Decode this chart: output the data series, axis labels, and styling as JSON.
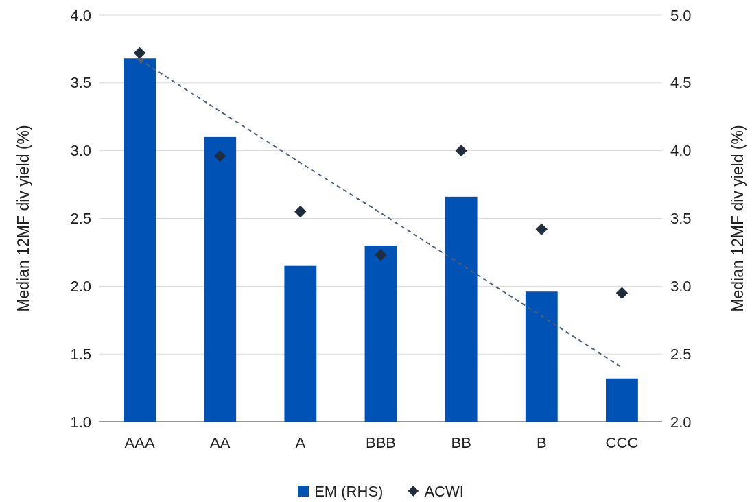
{
  "chart_data": {
    "type": "bar",
    "categories": [
      "AAA",
      "AA",
      "A",
      "BBB",
      "BB",
      "B",
      "CCC"
    ],
    "ylabel": "Median 12MF div yield (%)",
    "y2label": "Median 12MF div yield (%)",
    "ylim": [
      1.0,
      4.0
    ],
    "yticks": [
      {
        "value": 1,
        "label": "1.0"
      },
      {
        "value": 1.5,
        "label": "1.5"
      },
      {
        "value": 2,
        "label": "2.0"
      },
      {
        "value": 2.5,
        "label": "2.5"
      },
      {
        "value": 3,
        "label": "3.0"
      },
      {
        "value": 3.5,
        "label": "3.5"
      },
      {
        "value": 4,
        "label": "4.0"
      }
    ],
    "y2lim": [
      2.0,
      5.0
    ],
    "y2ticks": [
      {
        "value": 2,
        "label": "2.0"
      },
      {
        "value": 2.5,
        "label": "2.5"
      },
      {
        "value": 3,
        "label": "3.0"
      },
      {
        "value": 3.5,
        "label": "3.5"
      },
      {
        "value": 4,
        "label": "4.0"
      },
      {
        "value": 4.5,
        "label": "4.5"
      },
      {
        "value": 5,
        "label": "5.0"
      }
    ],
    "series": [
      {
        "name": "EM (RHS)",
        "axis": "y2",
        "color": "#0052b4",
        "values": [
          4.68,
          4.1,
          3.15,
          3.3,
          3.66,
          2.96,
          2.32
        ]
      },
      {
        "name": "ACWI",
        "type": "scatter",
        "marker": "diamond",
        "color": "#1f2d3d",
        "values": [
          3.72,
          2.96,
          2.55,
          2.23,
          3.0,
          2.42,
          1.95
        ]
      },
      {
        "type": "line",
        "line_style": "dashed",
        "marker": "none",
        "color": "#4d5f75",
        "values": [
          3.67,
          3.29,
          2.91,
          2.54,
          2.16,
          1.78,
          1.4
        ]
      }
    ],
    "grid": "y",
    "legend": "bottom"
  }
}
